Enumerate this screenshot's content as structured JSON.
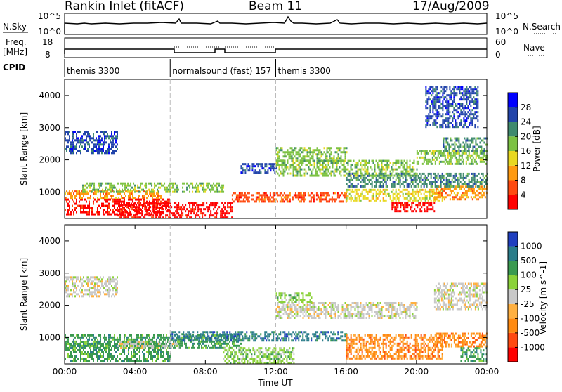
{
  "header": {
    "title": "Rankin Inlet (fitACF)",
    "beam": "Beam 11",
    "date": "17/Aug/2009"
  },
  "params_panel": {
    "nsky_label": "N.Sky",
    "nsky_ticks": [
      "10^5",
      "10^0"
    ],
    "nsearch_label": "N.Search",
    "nsearch_ticks": [
      "10^5",
      "10^0"
    ],
    "freq_label_1": "Freq.",
    "freq_label_2": "[MHz]",
    "freq_ticks": [
      "18",
      "8"
    ],
    "nave_label": "Nave",
    "nave_ticks": [
      "60",
      "0"
    ],
    "cpid_label": "CPID"
  },
  "cpid_segments": [
    {
      "label": "themis 3300",
      "start_hour": 0,
      "end_hour": 6
    },
    {
      "label": "normalsound (fast) 157",
      "start_hour": 6,
      "end_hour": 12
    },
    {
      "label": "themis 3300",
      "start_hour": 12,
      "end_hour": 24
    }
  ],
  "chart_data": [
    {
      "type": "heatmap",
      "name": "power",
      "ylabel": "Slant Range [km]",
      "ylim": [
        180,
        4500
      ],
      "yticks": [
        "1000",
        "2000",
        "3000",
        "4000"
      ],
      "xlim": [
        0,
        24
      ],
      "colorbar_label": "Power [dB]",
      "colorbar_ticks": [
        "4",
        "8",
        "12",
        "16",
        "20",
        "24",
        "28"
      ],
      "colors": [
        "#0000ff",
        "#2244aa",
        "#3f8a6e",
        "#7cc242",
        "#e8d820",
        "#ff9a10",
        "#ff4a10",
        "#ff0000"
      ],
      "regions": [
        {
          "x": [
            0.0,
            6.0
          ],
          "y": [
            300,
            800
          ],
          "level": 7
        },
        {
          "x": [
            3.0,
            9.5
          ],
          "y": [
            200,
            700
          ],
          "level": 7
        },
        {
          "x": [
            0.0,
            5.5
          ],
          "y": [
            800,
            1050
          ],
          "level": 5
        },
        {
          "x": [
            9.5,
            16.0
          ],
          "y": [
            700,
            1000
          ],
          "level": 6
        },
        {
          "x": [
            16.0,
            21.5
          ],
          "y": [
            750,
            1100
          ],
          "level": 4
        },
        {
          "x": [
            18.5,
            21.0
          ],
          "y": [
            400,
            700
          ],
          "level": 7
        },
        {
          "x": [
            21.0,
            24.0
          ],
          "y": [
            800,
            1200
          ],
          "level": 5
        },
        {
          "x": [
            12.0,
            20.0
          ],
          "y": [
            1500,
            2000
          ],
          "level": 3
        },
        {
          "x": [
            12.0,
            16.0
          ],
          "y": [
            2000,
            2400
          ],
          "level": 3
        },
        {
          "x": [
            20.0,
            24.0
          ],
          "y": [
            1900,
            2300
          ],
          "level": 3
        },
        {
          "x": [
            21.5,
            24.0
          ],
          "y": [
            2300,
            2700
          ],
          "level": 2
        },
        {
          "x": [
            0.0,
            3.0
          ],
          "y": [
            2200,
            2900
          ],
          "level": 1
        },
        {
          "x": [
            1.0,
            9.0
          ],
          "y": [
            1000,
            1300
          ],
          "level": 3
        },
        {
          "x": [
            10.0,
            12.0
          ],
          "y": [
            1600,
            1900
          ],
          "level": 1
        },
        {
          "x": [
            16.0,
            24.0
          ],
          "y": [
            1200,
            1600
          ],
          "level": 2
        },
        {
          "x": [
            20.5,
            23.5
          ],
          "y": [
            3000,
            4300
          ],
          "level": 1
        }
      ]
    },
    {
      "type": "heatmap",
      "name": "velocity",
      "ylabel": "Slant Range [km]",
      "ylim": [
        180,
        4500
      ],
      "yticks": [
        "1000",
        "2000",
        "3000",
        "4000"
      ],
      "xlim": [
        0,
        24
      ],
      "xticks": [
        "00:00",
        "04:00",
        "08:00",
        "12:00",
        "16:00",
        "20:00",
        "00:00"
      ],
      "xlabel": "Time UT",
      "colorbar_label": "Velocity [m s^-1]",
      "colorbar_ticks": [
        "1000",
        "500",
        "100",
        "25",
        "-25",
        "-100",
        "-500",
        "-1000"
      ],
      "colors": [
        "#1f3fbf",
        "#2a7d8a",
        "#3a9a50",
        "#8bd23a",
        "#c8c8c8",
        "#ffb040",
        "#ff8a10",
        "#ff4a10",
        "#ff0000"
      ],
      "regions": [
        {
          "x": [
            0.0,
            6.0
          ],
          "y": [
            300,
            900
          ],
          "level": 2
        },
        {
          "x": [
            0.0,
            10.0
          ],
          "y": [
            700,
            1100
          ],
          "level": 2
        },
        {
          "x": [
            3.0,
            6.5
          ],
          "y": [
            700,
            900
          ],
          "level": 4
        },
        {
          "x": [
            6.0,
            16.0
          ],
          "y": [
            900,
            1200
          ],
          "level": 1
        },
        {
          "x": [
            9.0,
            13.0
          ],
          "y": [
            200,
            700
          ],
          "level": 3
        },
        {
          "x": [
            12.0,
            20.0
          ],
          "y": [
            1600,
            2100
          ],
          "level": 4
        },
        {
          "x": [
            12.0,
            14.0
          ],
          "y": [
            2100,
            2400
          ],
          "level": 3
        },
        {
          "x": [
            16.0,
            21.5
          ],
          "y": [
            350,
            1100
          ],
          "level": 6
        },
        {
          "x": [
            21.0,
            24.0
          ],
          "y": [
            700,
            1150
          ],
          "level": 6
        },
        {
          "x": [
            21.0,
            24.0
          ],
          "y": [
            1900,
            2700
          ],
          "level": 4
        },
        {
          "x": [
            22.5,
            24.0
          ],
          "y": [
            300,
            700
          ],
          "level": 2
        },
        {
          "x": [
            0.0,
            3.0
          ],
          "y": [
            2300,
            2900
          ],
          "level": 4
        }
      ]
    }
  ]
}
